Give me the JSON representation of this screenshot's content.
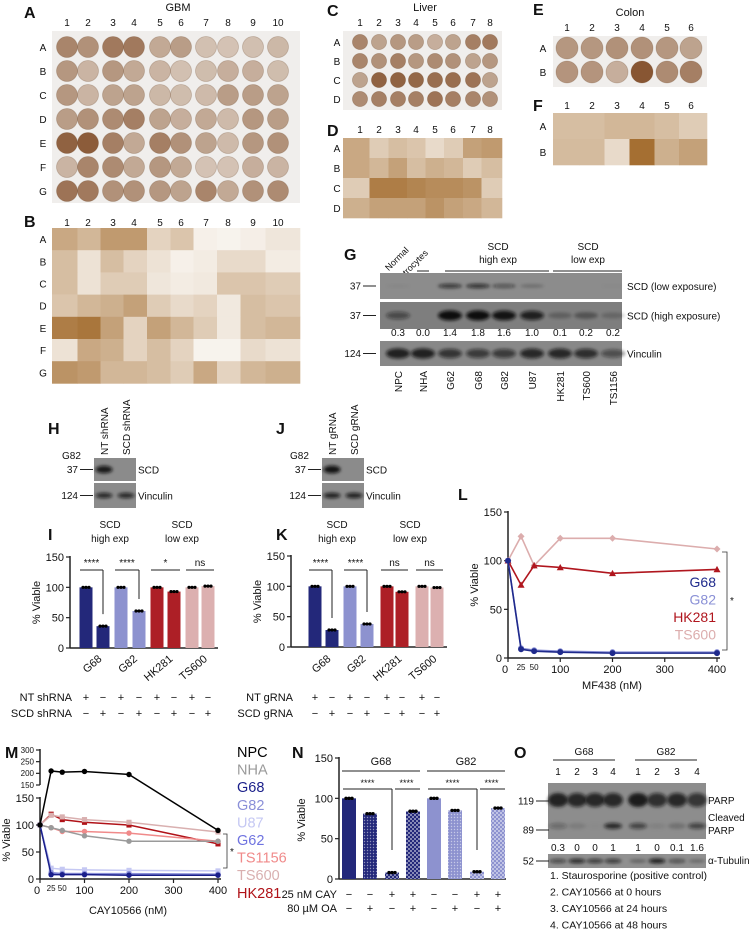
{
  "tma": [
    {
      "letter": "A",
      "title": "GBM",
      "cols": [
        "1",
        "2",
        "3",
        "4",
        "5",
        "6",
        "7",
        "8",
        "9",
        "10"
      ],
      "rows": [
        "A",
        "B",
        "C",
        "D",
        "E",
        "F",
        "G"
      ]
    },
    {
      "letter": "C",
      "title": "Liver",
      "cols": [
        "1",
        "2",
        "3",
        "4",
        "5",
        "6",
        "7",
        "8"
      ],
      "rows": [
        "A",
        "B",
        "C",
        "D"
      ]
    },
    {
      "letter": "E",
      "title": "Colon",
      "cols": [
        "1",
        "2",
        "3",
        "4",
        "5",
        "6"
      ],
      "rows": [
        "A",
        "B"
      ]
    }
  ],
  "blots": {
    "G": {
      "letter": "G",
      "headers": {
        "normal": [
          "Normal",
          "astrocytes"
        ],
        "high": [
          "SCD",
          "high exp"
        ],
        "low": [
          "SCD",
          "low exp"
        ]
      },
      "lanes": [
        "NPC",
        "NHA",
        "G62",
        "G68",
        "G82",
        "U87",
        "HK281",
        "TS600",
        "TS1156"
      ],
      "rows": [
        {
          "label": "SCD (low exposure)",
          "marker": "37",
          "intensity": [
            0.05,
            0,
            0.7,
            0.75,
            0.5,
            0.25,
            0,
            0,
            0.03
          ]
        },
        {
          "label": "SCD (high exposure)",
          "marker": "37",
          "intensity": [
            0.5,
            0,
            1,
            1,
            0.95,
            0.85,
            0.25,
            0.35,
            0.2
          ]
        },
        {
          "label": "Vinculin",
          "marker": "124",
          "intensity": [
            0.85,
            0.85,
            0.7,
            0.65,
            0.65,
            0.8,
            0.8,
            0.75,
            0.5
          ]
        }
      ],
      "quant": [
        "0.3",
        "0.0",
        "1.4",
        "1.8",
        "1.6",
        "1.0",
        "0.1",
        "0.2",
        "0.2"
      ]
    },
    "H": {
      "letter": "H",
      "cell_line": "G82",
      "lanes": [
        "NT shRNA",
        "SCD shRNA"
      ],
      "rows": [
        {
          "label": "SCD",
          "marker": "37",
          "intensity": [
            0.9,
            0
          ]
        },
        {
          "label": "Vinculin",
          "marker": "124",
          "intensity": [
            0.8,
            0.8
          ]
        }
      ]
    },
    "J": {
      "letter": "J",
      "cell_line": "G82",
      "lanes": [
        "NT gRNA",
        "SCD gRNA"
      ],
      "rows": [
        {
          "label": "SCD",
          "marker": "37",
          "intensity": [
            0.95,
            0
          ]
        },
        {
          "label": "Vinculin",
          "marker": "124",
          "intensity": [
            0.85,
            0.85
          ]
        }
      ]
    },
    "O": {
      "letter": "O",
      "groups": [
        "G68",
        "G82"
      ],
      "lanes": [
        "1",
        "2",
        "3",
        "4",
        "1",
        "2",
        "3",
        "4"
      ],
      "markers": [
        "119",
        "89",
        "52"
      ],
      "labels": {
        "parp": "PARP",
        "cleaved": "Cleaved",
        "cleaved2": "PARP",
        "tubulin": "α-Tubulin"
      },
      "parp_intensity": [
        0.9,
        0.8,
        0.8,
        0.8,
        0.95,
        0.75,
        0.8,
        0.7
      ],
      "cleaved_intensity": [
        0.3,
        0.12,
        0.02,
        0.8,
        0.6,
        0.08,
        0.2,
        0.6
      ],
      "tubulin_intensity": [
        0.6,
        0.8,
        0.7,
        0.7,
        0.35,
        0.9,
        0.55,
        0.3
      ],
      "quant": [
        "0.3",
        "0",
        "0",
        "1",
        "1",
        "0",
        "0.1",
        "1.6"
      ],
      "legend": [
        "1. Staurosporine (positive control)",
        "2. CAY10566 at 0 hours",
        "3. CAY10566 at 24 hours",
        "4. CAY10566 at 48 hours"
      ]
    }
  },
  "chart_data": [
    {
      "type": "heatmap",
      "letter": "B",
      "cols": [
        "1",
        "2",
        "3",
        "4",
        "5",
        "6",
        "7",
        "8",
        "9",
        "10"
      ],
      "rows": [
        "A",
        "B",
        "C",
        "D",
        "E",
        "F",
        "G"
      ],
      "values": [
        [
          0.55,
          0.45,
          0.65,
          0.65,
          0.25,
          0.35,
          0.05,
          0.03,
          0.06,
          0.12
        ],
        [
          0.4,
          0.15,
          0.4,
          0.25,
          0.15,
          0.05,
          0.08,
          0.2,
          0.2,
          0.08
        ],
        [
          0.4,
          0.15,
          0.3,
          0.3,
          0.12,
          0.08,
          0.1,
          0.35,
          0.35,
          0.3
        ],
        [
          0.35,
          0.45,
          0.5,
          0.6,
          0.3,
          0.2,
          0.25,
          0.1,
          0.4,
          0.35
        ],
        [
          0.85,
          0.9,
          0.6,
          0.25,
          0.6,
          0.45,
          0.3,
          0.1,
          0.4,
          0.45
        ],
        [
          0.15,
          0.55,
          0.5,
          0.25,
          0.4,
          0.25,
          0.03,
          0.03,
          0.2,
          0.15
        ],
        [
          0.7,
          0.65,
          0.45,
          0.45,
          0.4,
          0.3,
          0.55,
          0.25,
          0.45,
          0.5
        ]
      ]
    },
    {
      "type": "heatmap",
      "letter": "D",
      "cols": [
        "1",
        "2",
        "3",
        "4",
        "5",
        "6",
        "7",
        "8"
      ],
      "rows": [
        "A",
        "B",
        "C",
        "D"
      ],
      "values": [
        [
          0.55,
          0.3,
          0.4,
          0.35,
          0.2,
          0.3,
          0.6,
          0.65
        ],
        [
          0.55,
          0.45,
          0.6,
          0.4,
          0.5,
          0.45,
          0.3,
          0.4
        ],
        [
          0.3,
          0.85,
          0.85,
          0.8,
          0.75,
          0.75,
          0.7,
          0.3
        ],
        [
          0.5,
          0.6,
          0.6,
          0.6,
          0.7,
          0.6,
          0.55,
          0.45
        ]
      ]
    },
    {
      "type": "heatmap",
      "letter": "F",
      "cols": [
        "1",
        "2",
        "3",
        "4",
        "5",
        "6"
      ],
      "rows": [
        "A",
        "B"
      ],
      "values": [
        [
          0.4,
          0.4,
          0.45,
          0.45,
          0.4,
          0.3
        ],
        [
          0.42,
          0.42,
          0.2,
          0.95,
          0.5,
          0.6
        ]
      ]
    },
    {
      "type": "bar",
      "letter": "I",
      "group_titles": [
        [
          "SCD",
          "high exp"
        ],
        [
          "SCD",
          "low exp"
        ]
      ],
      "categories": [
        "G68",
        "G82",
        "HK281",
        "TS600"
      ],
      "values": [
        [
          100,
          36
        ],
        [
          100,
          61
        ],
        [
          100,
          93
        ],
        [
          100,
          102
        ]
      ],
      "colors": [
        "#23287a",
        "#8d92cf",
        "#ad1f26",
        "#dcb0b0"
      ],
      "ylabel": "% Viable",
      "ylim": [
        0,
        150
      ],
      "yticks": [
        "0",
        "50",
        "100",
        "150"
      ],
      "significance": [
        "****",
        "****",
        "*",
        "ns"
      ],
      "treatments": [
        {
          "label": "NT shRNA",
          "signs": [
            "+",
            "−",
            "+",
            "−",
            "+",
            "−",
            "+",
            "−"
          ]
        },
        {
          "label": "SCD shRNA",
          "signs": [
            "−",
            "+",
            "−",
            "+",
            "−",
            "+",
            "−",
            "+"
          ]
        }
      ]
    },
    {
      "type": "bar",
      "letter": "K",
      "group_titles": [
        [
          "SCD",
          "high exp"
        ],
        [
          "SCD",
          "low exp"
        ]
      ],
      "categories": [
        "G68",
        "G82",
        "HK281",
        "TS600"
      ],
      "values": [
        [
          100,
          28
        ],
        [
          100,
          38
        ],
        [
          100,
          91
        ],
        [
          100,
          98
        ]
      ],
      "colors": [
        "#23287a",
        "#8d92cf",
        "#ad1f26",
        "#dcb0b0"
      ],
      "ylabel": "% Viable",
      "ylim": [
        0,
        150
      ],
      "yticks": [
        "0",
        "50",
        "100",
        "150"
      ],
      "significance": [
        "****",
        "****",
        "ns",
        "ns"
      ],
      "treatments": [
        {
          "label": "NT gRNA",
          "signs": [
            "+",
            "−",
            "+",
            "−",
            "+",
            "−",
            "+",
            "−"
          ]
        },
        {
          "label": "SCD gRNA",
          "signs": [
            "−",
            "+",
            "−",
            "+",
            "−",
            "+",
            "−",
            "+"
          ]
        }
      ]
    },
    {
      "type": "line",
      "letter": "L",
      "x": [
        0,
        25,
        50,
        100,
        200,
        400
      ],
      "xlabel": "MF438 (nM)",
      "ylabel": "% Viable",
      "xlim": [
        0,
        400
      ],
      "ylim": [
        0,
        150
      ],
      "xticks": [
        "0",
        "25",
        "50",
        "100",
        "200",
        "300",
        "400"
      ],
      "yticks": [
        "0",
        "50",
        "100",
        "150"
      ],
      "significance": "*",
      "legend": "right",
      "series": [
        {
          "name": "G68",
          "color": "#1f2a8c",
          "marker": "circle",
          "values": [
            100,
            9,
            7,
            6,
            5,
            5
          ]
        },
        {
          "name": "G82",
          "color": "#8a90d6",
          "marker": "circle",
          "values": [
            100,
            10,
            8,
            7,
            6,
            6
          ]
        },
        {
          "name": "HK281",
          "color": "#b0161e",
          "marker": "triangle",
          "values": [
            100,
            75,
            95,
            93,
            87,
            91
          ]
        },
        {
          "name": "TS600",
          "color": "#dcadad",
          "marker": "diamond",
          "values": [
            100,
            125,
            95,
            123,
            123,
            112
          ]
        }
      ]
    },
    {
      "type": "line",
      "letter": "M",
      "x": [
        0,
        25,
        50,
        100,
        200,
        400
      ],
      "xlabel": "CAY10566 (nM)",
      "ylabel": "% Viable",
      "xlim": [
        0,
        400
      ],
      "ylim_lower": [
        0,
        150
      ],
      "ylim_upper": [
        150,
        300
      ],
      "axis_break": true,
      "xticks": [
        "0",
        "25",
        "50",
        "100",
        "200",
        "300",
        "400"
      ],
      "yticks_lower": [
        "0",
        "50",
        "100",
        "150"
      ],
      "yticks_upper": [
        "150",
        "200",
        "250",
        "300"
      ],
      "significance": "*",
      "legend": "right",
      "series": [
        {
          "name": "NPC",
          "color": "#000000",
          "marker": "circle",
          "values": [
            100,
            210,
            205,
            208,
            195,
            90
          ]
        },
        {
          "name": "NHA",
          "color": "#9a9a9a",
          "marker": "circle",
          "values": [
            100,
            95,
            90,
            80,
            70,
            70
          ]
        },
        {
          "name": "G68",
          "color": "#1a1f8a",
          "marker": "circle",
          "values": [
            100,
            8,
            8,
            8,
            7,
            7
          ]
        },
        {
          "name": "G82",
          "color": "#8a8fd8",
          "marker": "circle",
          "values": [
            100,
            12,
            10,
            10,
            10,
            9
          ]
        },
        {
          "name": "U87",
          "color": "#c5c8f3",
          "marker": "square",
          "values": [
            100,
            20,
            18,
            17,
            16,
            15
          ]
        },
        {
          "name": "G62",
          "color": "#6f73e0",
          "marker": "circle",
          "values": [
            100,
            10,
            10,
            10,
            9,
            8
          ]
        },
        {
          "name": "TS1156",
          "color": "#f08a8a",
          "marker": "circle",
          "values": [
            100,
            95,
            88,
            88,
            85,
            70
          ]
        },
        {
          "name": "TS600",
          "color": "#d9b0b0",
          "marker": "square",
          "values": [
            100,
            118,
            115,
            110,
            105,
            87
          ]
        },
        {
          "name": "HK281",
          "color": "#b01218",
          "marker": "square",
          "values": [
            100,
            120,
            110,
            105,
            100,
            65
          ]
        }
      ]
    },
    {
      "type": "bar",
      "letter": "N",
      "ylabel": "% Viable",
      "ylim": [
        0,
        150
      ],
      "yticks": [
        "0",
        "50",
        "100",
        "150"
      ],
      "groups": [
        {
          "name": "G68",
          "color": "#23287a",
          "values": [
            100,
            81,
            8,
            84
          ]
        },
        {
          "name": "G82",
          "color": "#8d92cf",
          "values": [
            100,
            85,
            9,
            88
          ]
        }
      ],
      "significance": [
        "****",
        "****",
        "****",
        "****"
      ],
      "treatments": [
        {
          "label": "25 nM CAY",
          "signs": [
            "−",
            "−",
            "+",
            "+",
            "−",
            "−",
            "+",
            "+"
          ]
        },
        {
          "label": "80 µM OA",
          "signs": [
            "−",
            "+",
            "−",
            "+",
            "−",
            "+",
            "−",
            "+"
          ]
        }
      ]
    }
  ]
}
